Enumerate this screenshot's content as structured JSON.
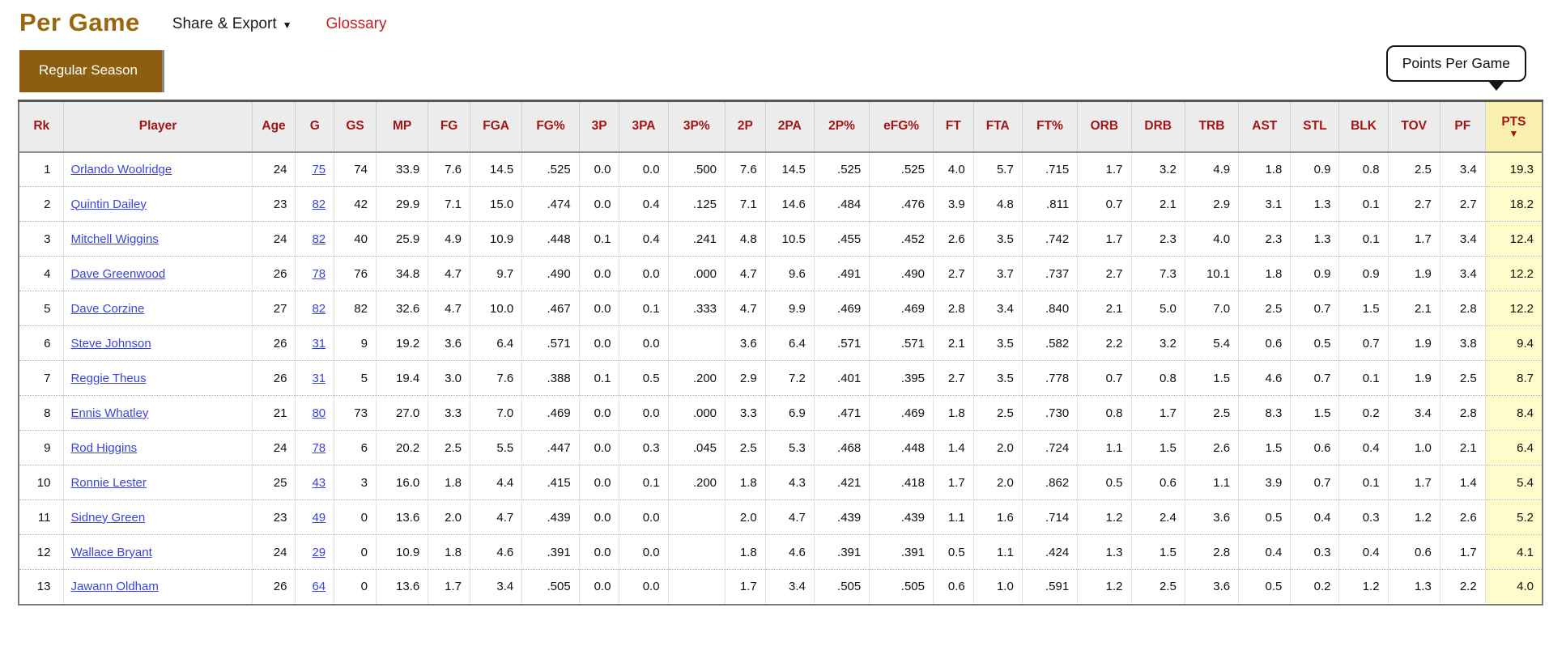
{
  "header": {
    "title": "Per Game",
    "share_export_label": "Share & Export",
    "share_export_caret": "▼",
    "glossary_label": "Glossary",
    "tab_label": "Regular Season"
  },
  "tooltip": {
    "text": "Points Per Game"
  },
  "table": {
    "columns": [
      "Rk",
      "Player",
      "Age",
      "G",
      "GS",
      "MP",
      "FG",
      "FGA",
      "FG%",
      "3P",
      "3PA",
      "3P%",
      "2P",
      "2PA",
      "2P%",
      "eFG%",
      "FT",
      "FTA",
      "FT%",
      "ORB",
      "DRB",
      "TRB",
      "AST",
      "STL",
      "BLK",
      "TOV",
      "PF",
      "PTS"
    ],
    "sorted_column": "PTS",
    "sort_indicator": "▼",
    "rows": [
      [
        "1",
        "Orlando Woolridge",
        "24",
        "75",
        "74",
        "33.9",
        "7.6",
        "14.5",
        ".525",
        "0.0",
        "0.0",
        ".500",
        "7.6",
        "14.5",
        ".525",
        ".525",
        "4.0",
        "5.7",
        ".715",
        "1.7",
        "3.2",
        "4.9",
        "1.8",
        "0.9",
        "0.8",
        "2.5",
        "3.4",
        "19.3"
      ],
      [
        "2",
        "Quintin Dailey",
        "23",
        "82",
        "42",
        "29.9",
        "7.1",
        "15.0",
        ".474",
        "0.0",
        "0.4",
        ".125",
        "7.1",
        "14.6",
        ".484",
        ".476",
        "3.9",
        "4.8",
        ".811",
        "0.7",
        "2.1",
        "2.9",
        "3.1",
        "1.3",
        "0.1",
        "2.7",
        "2.7",
        "18.2"
      ],
      [
        "3",
        "Mitchell Wiggins",
        "24",
        "82",
        "40",
        "25.9",
        "4.9",
        "10.9",
        ".448",
        "0.1",
        "0.4",
        ".241",
        "4.8",
        "10.5",
        ".455",
        ".452",
        "2.6",
        "3.5",
        ".742",
        "1.7",
        "2.3",
        "4.0",
        "2.3",
        "1.3",
        "0.1",
        "1.7",
        "3.4",
        "12.4"
      ],
      [
        "4",
        "Dave Greenwood",
        "26",
        "78",
        "76",
        "34.8",
        "4.7",
        "9.7",
        ".490",
        "0.0",
        "0.0",
        ".000",
        "4.7",
        "9.6",
        ".491",
        ".490",
        "2.7",
        "3.7",
        ".737",
        "2.7",
        "7.3",
        "10.1",
        "1.8",
        "0.9",
        "0.9",
        "1.9",
        "3.4",
        "12.2"
      ],
      [
        "5",
        "Dave Corzine",
        "27",
        "82",
        "82",
        "32.6",
        "4.7",
        "10.0",
        ".467",
        "0.0",
        "0.1",
        ".333",
        "4.7",
        "9.9",
        ".469",
        ".469",
        "2.8",
        "3.4",
        ".840",
        "2.1",
        "5.0",
        "7.0",
        "2.5",
        "0.7",
        "1.5",
        "2.1",
        "2.8",
        "12.2"
      ],
      [
        "6",
        "Steve Johnson",
        "26",
        "31",
        "9",
        "19.2",
        "3.6",
        "6.4",
        ".571",
        "0.0",
        "0.0",
        "",
        "3.6",
        "6.4",
        ".571",
        ".571",
        "2.1",
        "3.5",
        ".582",
        "2.2",
        "3.2",
        "5.4",
        "0.6",
        "0.5",
        "0.7",
        "1.9",
        "3.8",
        "9.4"
      ],
      [
        "7",
        "Reggie Theus",
        "26",
        "31",
        "5",
        "19.4",
        "3.0",
        "7.6",
        ".388",
        "0.1",
        "0.5",
        ".200",
        "2.9",
        "7.2",
        ".401",
        ".395",
        "2.7",
        "3.5",
        ".778",
        "0.7",
        "0.8",
        "1.5",
        "4.6",
        "0.7",
        "0.1",
        "1.9",
        "2.5",
        "8.7"
      ],
      [
        "8",
        "Ennis Whatley",
        "21",
        "80",
        "73",
        "27.0",
        "3.3",
        "7.0",
        ".469",
        "0.0",
        "0.0",
        ".000",
        "3.3",
        "6.9",
        ".471",
        ".469",
        "1.8",
        "2.5",
        ".730",
        "0.8",
        "1.7",
        "2.5",
        "8.3",
        "1.5",
        "0.2",
        "3.4",
        "2.8",
        "8.4"
      ],
      [
        "9",
        "Rod Higgins",
        "24",
        "78",
        "6",
        "20.2",
        "2.5",
        "5.5",
        ".447",
        "0.0",
        "0.3",
        ".045",
        "2.5",
        "5.3",
        ".468",
        ".448",
        "1.4",
        "2.0",
        ".724",
        "1.1",
        "1.5",
        "2.6",
        "1.5",
        "0.6",
        "0.4",
        "1.0",
        "2.1",
        "6.4"
      ],
      [
        "10",
        "Ronnie Lester",
        "25",
        "43",
        "3",
        "16.0",
        "1.8",
        "4.4",
        ".415",
        "0.0",
        "0.1",
        ".200",
        "1.8",
        "4.3",
        ".421",
        ".418",
        "1.7",
        "2.0",
        ".862",
        "0.5",
        "0.6",
        "1.1",
        "3.9",
        "0.7",
        "0.1",
        "1.7",
        "1.4",
        "5.4"
      ],
      [
        "11",
        "Sidney Green",
        "23",
        "49",
        "0",
        "13.6",
        "2.0",
        "4.7",
        ".439",
        "0.0",
        "0.0",
        "",
        "2.0",
        "4.7",
        ".439",
        ".439",
        "1.1",
        "1.6",
        ".714",
        "1.2",
        "2.4",
        "3.6",
        "0.5",
        "0.4",
        "0.3",
        "1.2",
        "2.6",
        "5.2"
      ],
      [
        "12",
        "Wallace Bryant",
        "24",
        "29",
        "0",
        "10.9",
        "1.8",
        "4.6",
        ".391",
        "0.0",
        "0.0",
        "",
        "1.8",
        "4.6",
        ".391",
        ".391",
        "0.5",
        "1.1",
        ".424",
        "1.3",
        "1.5",
        "2.8",
        "0.4",
        "0.3",
        "0.4",
        "0.6",
        "1.7",
        "4.1"
      ],
      [
        "13",
        "Jawann Oldham",
        "26",
        "64",
        "0",
        "13.6",
        "1.7",
        "3.4",
        ".505",
        "0.0",
        "0.0",
        "",
        "1.7",
        "3.4",
        ".505",
        ".505",
        "0.6",
        "1.0",
        ".591",
        "1.2",
        "2.5",
        "3.6",
        "0.5",
        "0.2",
        "1.2",
        "1.3",
        "2.2",
        "4.0"
      ]
    ]
  },
  "colors": {
    "title_brown": "#9b650b",
    "tab_bg": "#8c5e10",
    "header_red": "#a31515",
    "link_blue": "#3b44dd",
    "glossary_red": "#c22026",
    "sort_col_bg": "#fffbcc",
    "sort_header_bg": "#f9f0ae"
  }
}
